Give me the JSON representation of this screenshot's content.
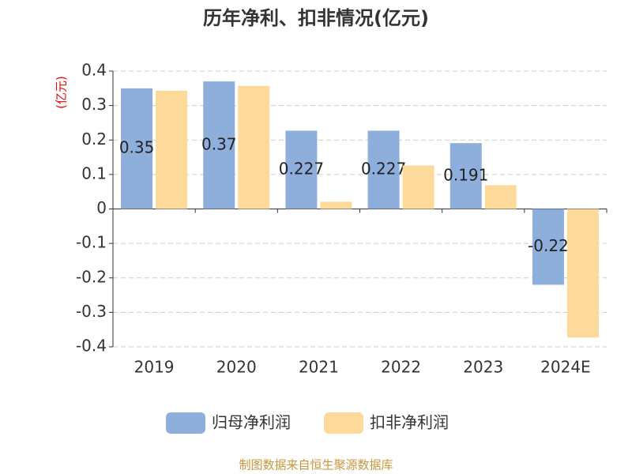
{
  "chart_data": {
    "type": "bar",
    "title": "历年净利、扣非情况(亿元)",
    "y_label": "(亿元)",
    "categories": [
      "2019",
      "2020",
      "2021",
      "2022",
      "2023",
      "2024E"
    ],
    "series": [
      {
        "name": "归母净利润",
        "color": "#8eaedc",
        "values": [
          0.35,
          0.37,
          0.227,
          0.227,
          0.191,
          -0.22
        ]
      },
      {
        "name": "扣非净利润",
        "color": "#fdd99a",
        "values": [
          0.343,
          0.357,
          0.021,
          0.126,
          0.069,
          -0.373
        ]
      }
    ],
    "ylim": [
      -0.4,
      0.4
    ],
    "yticks": [
      -0.4,
      -0.3,
      -0.2,
      -0.1,
      0,
      0.1,
      0.2,
      0.3,
      0.4
    ],
    "grid": true,
    "legend": "bottom",
    "source": "制图数据来自恒生聚源数据库"
  }
}
